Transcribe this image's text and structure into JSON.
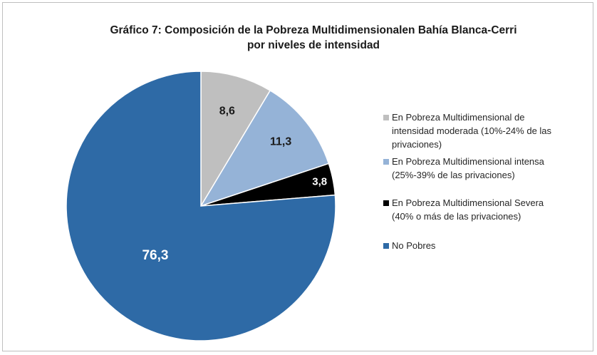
{
  "chart_data": {
    "type": "pie",
    "title_line1": "Gráfico 7: Composición de la Pobreza Multidimensionalen Bahía Blanca-Cerri",
    "title_line2": "por niveles de intensidad",
    "slices": [
      {
        "label": "En Pobreza Multidimensional de\nintensidad moderada (10%-24% de las\nprivaciones)",
        "value": 8.6,
        "display": "8,6",
        "color": "#bfbfbf",
        "label_color": "#1a1a1a"
      },
      {
        "label": "En Pobreza Multidimensional intensa\n(25%-39% de las privaciones)",
        "value": 11.3,
        "display": "11,3",
        "color": "#95b3d7",
        "label_color": "#1a1a1a"
      },
      {
        "label": "En Pobreza Multidimensional Severa\n (40% o más de las privaciones)",
        "value": 3.8,
        "display": "3,8",
        "color": "#000000",
        "label_color": "#ffffff"
      },
      {
        "label": "No Pobres",
        "value": 76.3,
        "display": "76,3",
        "color": "#2e6aa6",
        "label_color": "#ffffff"
      }
    ],
    "legend_position": "right"
  }
}
